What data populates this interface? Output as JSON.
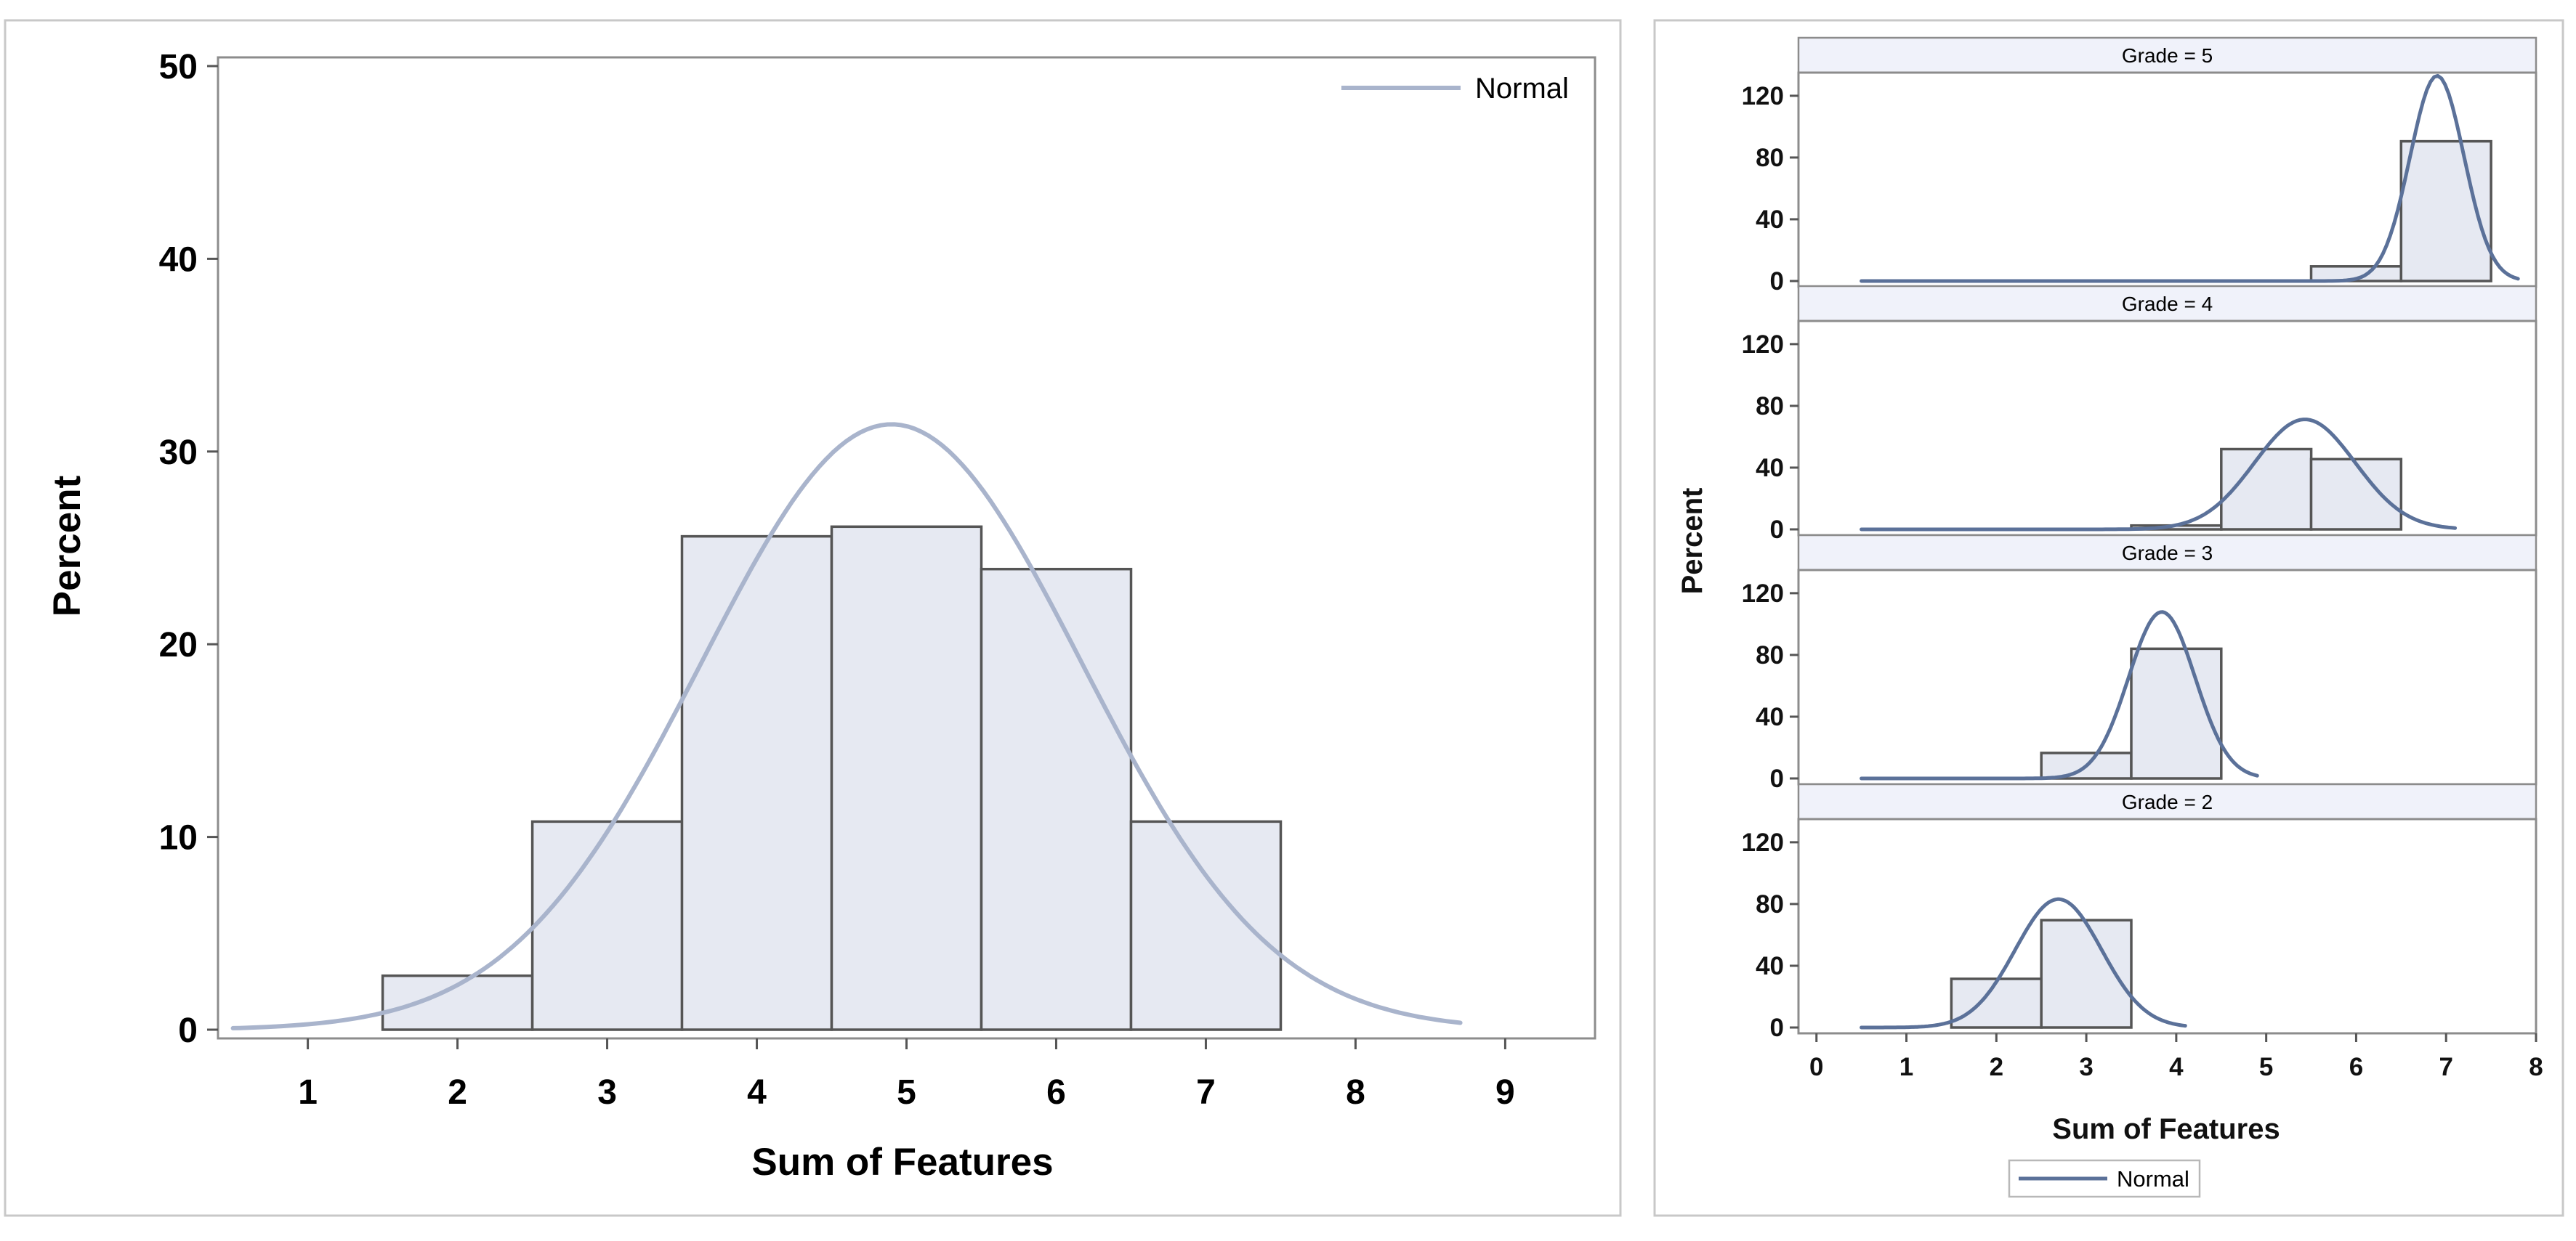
{
  "chart_data": [
    {
      "type": "bar",
      "title": "",
      "xlabel": "Sum of Features",
      "ylabel": "Percent",
      "xlim": [
        0.4,
        9.6
      ],
      "ylim": [
        0,
        50
      ],
      "x_ticks": [
        "1",
        "2",
        "3",
        "4",
        "5",
        "6",
        "7",
        "8",
        "9"
      ],
      "y_ticks": [
        "0",
        "10",
        "20",
        "30",
        "40",
        "50"
      ],
      "bars": [
        {
          "x": 2,
          "value": 2.8
        },
        {
          "x": 3,
          "value": 10.8
        },
        {
          "x": 4,
          "value": 25.6
        },
        {
          "x": 5,
          "value": 26.1
        },
        {
          "x": 6,
          "value": 23.9
        },
        {
          "x": 7,
          "value": 10.8
        }
      ],
      "bar_width": 1,
      "normal_curve": {
        "mean": 4.9,
        "sd": 1.27,
        "x_range": [
          0.5,
          8.7
        ]
      },
      "legend": {
        "entries": [
          "Normal"
        ],
        "position": "top-right"
      },
      "colors": {
        "bar_fill": "#e6e9f2",
        "bar_edge": "#555555",
        "curve": "#a9b4cc"
      }
    },
    {
      "type": "bar",
      "title": "",
      "xlabel": "Sum of Features",
      "ylabel": "Percent",
      "xlim": [
        -0.2,
        8.0
      ],
      "ylim": [
        0,
        135
      ],
      "x_ticks": [
        "0",
        "1",
        "2",
        "3",
        "4",
        "5",
        "6",
        "7",
        "8"
      ],
      "y_ticks": [
        "0",
        "40",
        "80",
        "120"
      ],
      "bar_width": 1,
      "facets": [
        {
          "label": "Grade = 5",
          "bars": [
            {
              "x": 6,
              "value": 9.5
            },
            {
              "x": 7,
              "value": 90.5
            }
          ],
          "normal_curve": {
            "mean": 6.9,
            "sd": 0.3,
            "x_range": [
              0.5,
              7.8
            ]
          }
        },
        {
          "label": "Grade = 4",
          "bars": [
            {
              "x": 4,
              "value": 2.5
            },
            {
              "x": 5,
              "value": 52
            },
            {
              "x": 6,
              "value": 45.5
            }
          ],
          "normal_curve": {
            "mean": 5.43,
            "sd": 0.56,
            "x_range": [
              0.5,
              7.1
            ]
          }
        },
        {
          "label": "Grade = 3",
          "bars": [
            {
              "x": 3,
              "value": 16.5
            },
            {
              "x": 4,
              "value": 84
            }
          ],
          "normal_curve": {
            "mean": 3.84,
            "sd": 0.37,
            "x_range": [
              0.5,
              4.9
            ]
          }
        },
        {
          "label": "Grade = 2",
          "bars": [
            {
              "x": 2,
              "value": 31.5
            },
            {
              "x": 3,
              "value": 69.5
            }
          ],
          "normal_curve": {
            "mean": 2.69,
            "sd": 0.48,
            "x_range": [
              0.5,
              4.1
            ]
          }
        }
      ],
      "legend": {
        "entries": [
          "Normal"
        ],
        "position": "bottom"
      },
      "colors": {
        "bar_fill": "#e6e9f2",
        "bar_edge": "#555555",
        "curve": "#5b7199"
      }
    }
  ]
}
